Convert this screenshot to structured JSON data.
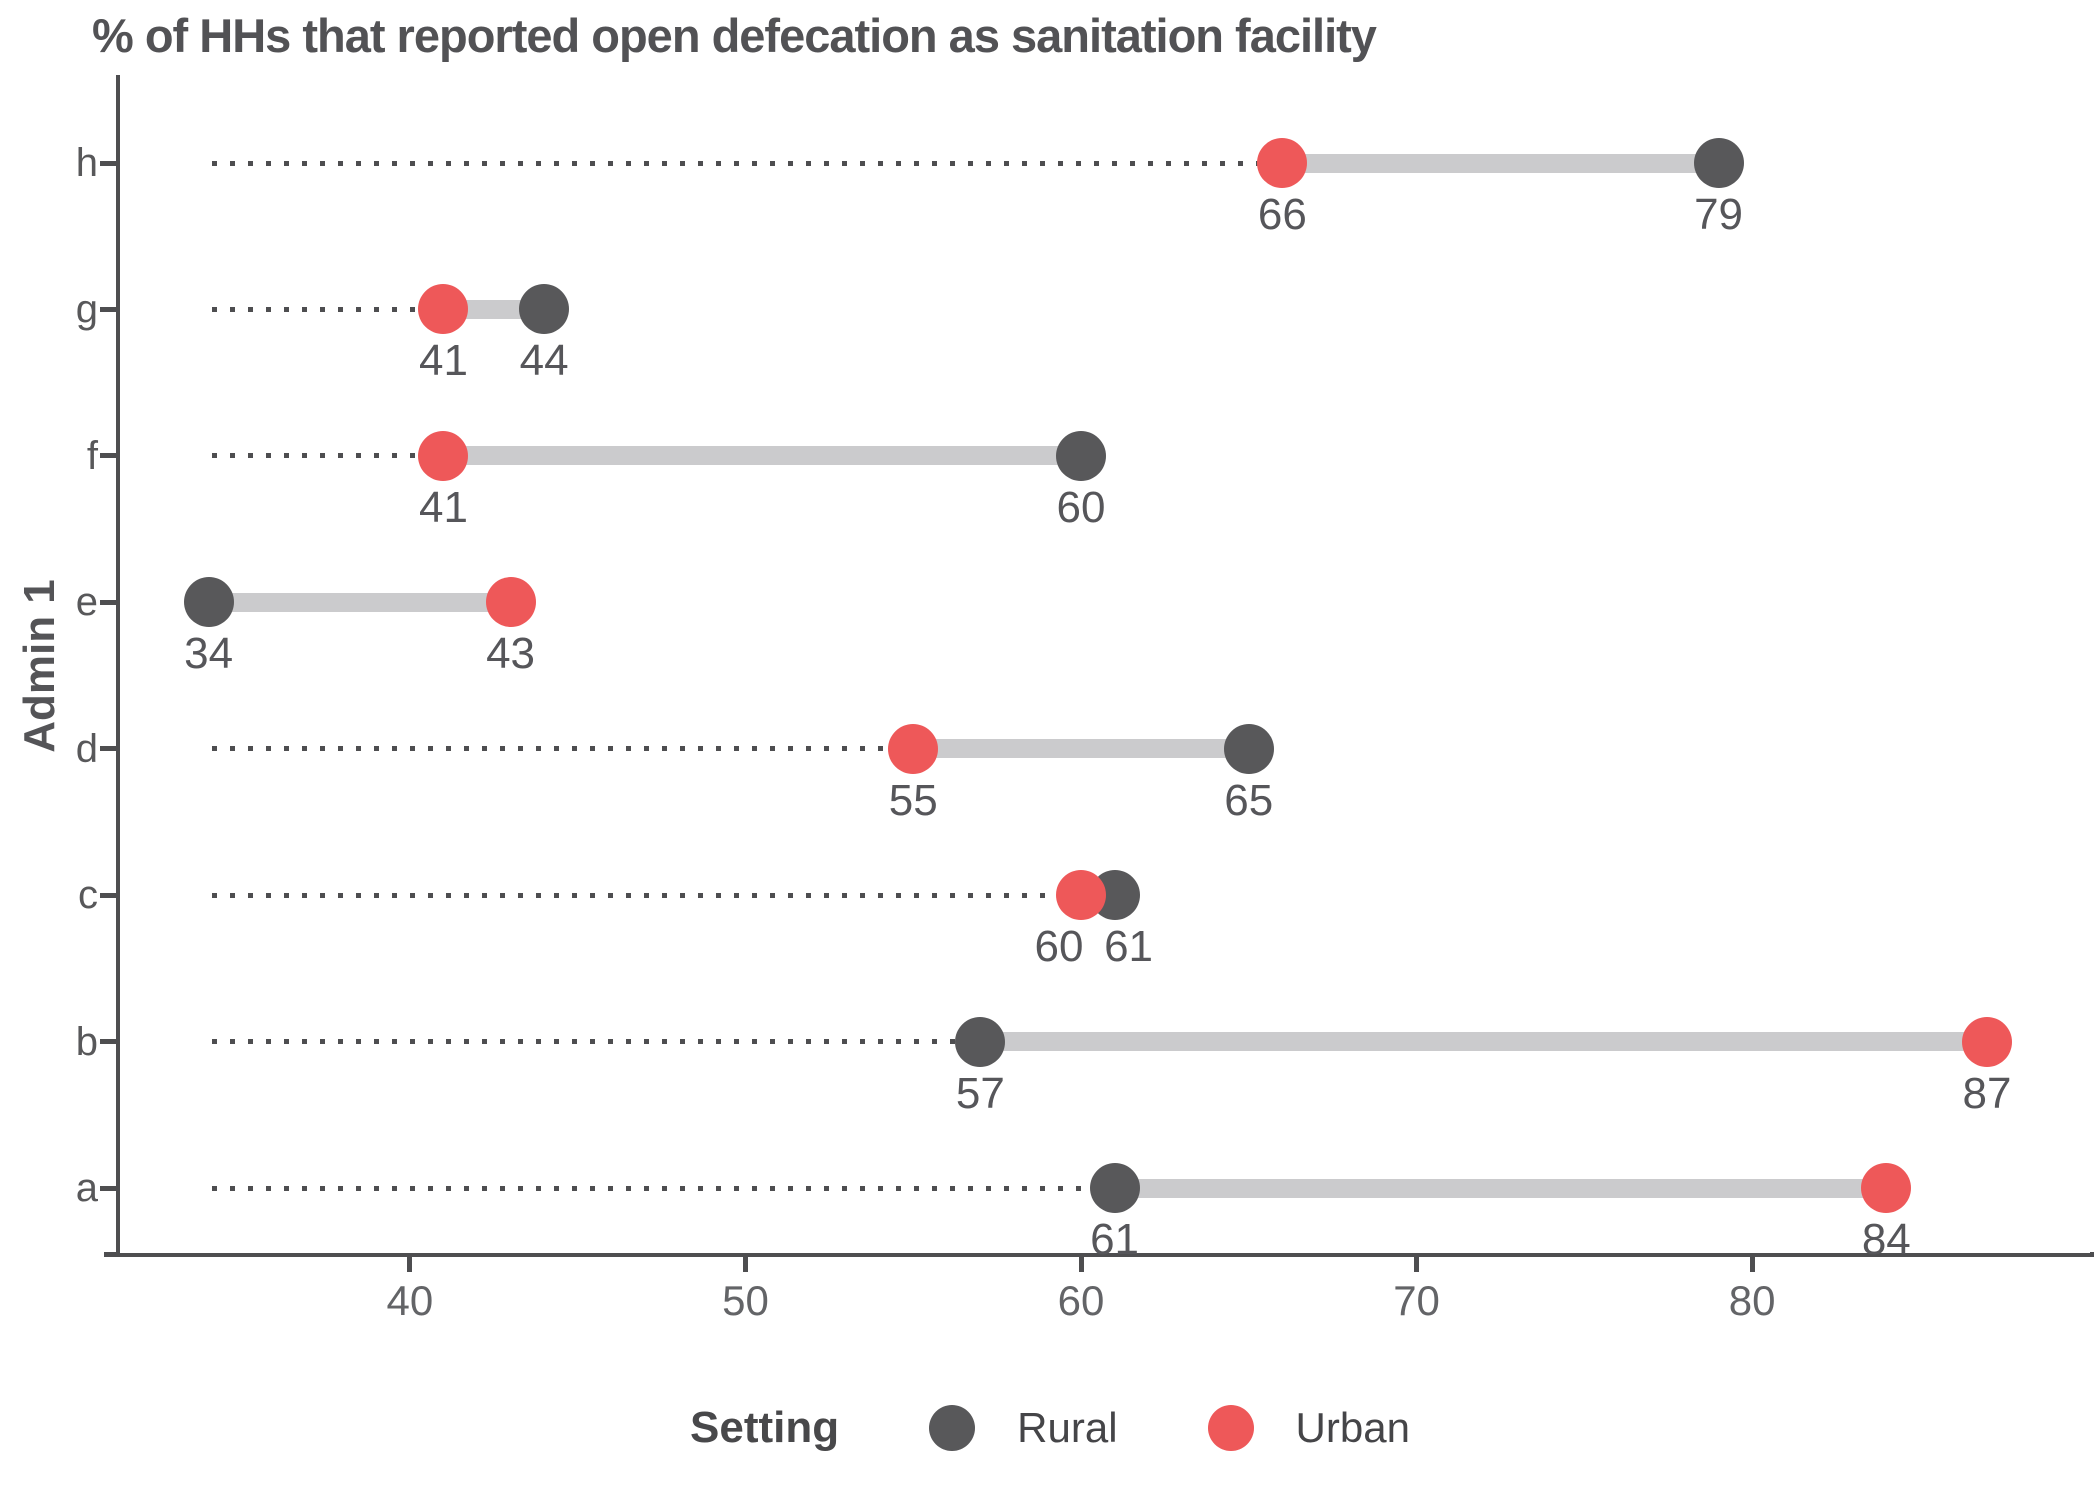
{
  "title": "% of HHs that reported open defecation as sanitation facility",
  "y_axis_title": "Admin 1",
  "legend": {
    "title": "Setting",
    "items": [
      {
        "label": "Rural",
        "color": "#58585A"
      },
      {
        "label": "Urban",
        "color": "#EE5859"
      }
    ]
  },
  "colors": {
    "rural": "#58585A",
    "urban": "#EE5859",
    "connector_band": "#CBCBCD",
    "leader_dots": "#4E4E50",
    "axis_line": "#4E4E50",
    "title_text": "#525255",
    "tick_text": "#636467",
    "value_text": "#56565A",
    "background": "#FFFFFF"
  },
  "chart_data": {
    "type": "scatter",
    "subtype": "dumbbell",
    "title": "% of HHs that reported open defecation as sanitation facility",
    "xlabel": "",
    "ylabel": "Admin 1",
    "categories": [
      "h",
      "g",
      "f",
      "e",
      "d",
      "c",
      "b",
      "a"
    ],
    "series": [
      {
        "name": "Rural",
        "color": "#58585A",
        "values": [
          79,
          44,
          60,
          34,
          65,
          61,
          57,
          61
        ]
      },
      {
        "name": "Urban",
        "color": "#EE5859",
        "values": [
          66,
          41,
          41,
          43,
          55,
          60,
          87,
          84
        ]
      }
    ],
    "point_labels_visible": true,
    "x_ticks": [
      40,
      50,
      60,
      70,
      80
    ],
    "x_range": [
      31.36,
      90.07
    ],
    "leader_start": 34.1,
    "grid": "off",
    "legend_position": "bottom",
    "label_nudges": [
      {
        "category": "c",
        "series": "Urban",
        "dx": -22
      },
      {
        "category": "c",
        "series": "Rural",
        "dx": 14
      }
    ]
  }
}
